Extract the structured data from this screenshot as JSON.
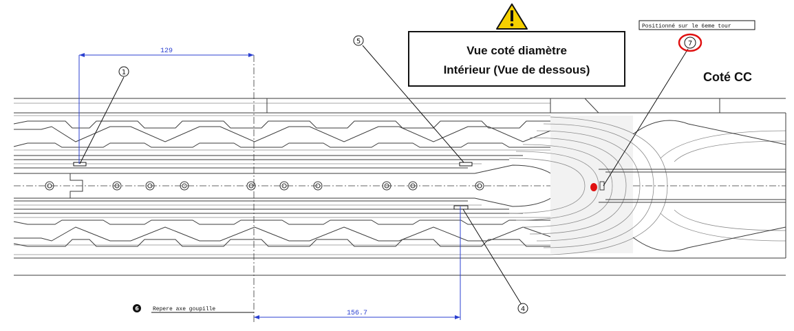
{
  "warning": {
    "icon": "warning-triangle-icon",
    "line1": "Vue coté diamètre",
    "line2": "Intérieur (Vue de dessous)"
  },
  "side_label": "Coté CC",
  "note_box": "Positionné sur le 6eme tour",
  "dimensions": {
    "top": "129",
    "bottom": "156.7"
  },
  "balloons": {
    "b1": "1",
    "b4": "4",
    "b5": "5",
    "b6": "6",
    "b7": "7"
  },
  "balloon6_text": "Repere axe goupille",
  "colors": {
    "dimension": "#2a3fd0",
    "highlight": "#e01010",
    "warning_fill": "#f5d000"
  }
}
